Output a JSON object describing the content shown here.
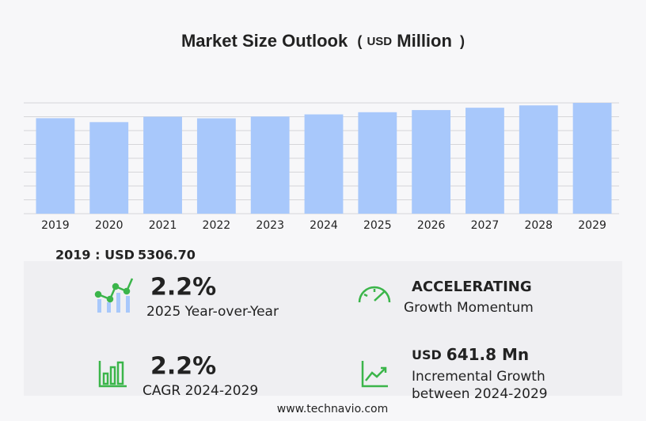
{
  "chart_data": {
    "type": "bar",
    "title": "Market Size Outlook",
    "title_unit": [
      "(",
      "USD",
      "Million",
      ")"
    ],
    "categories": [
      "2019",
      "2020",
      "2021",
      "2022",
      "2023",
      "2024",
      "2025",
      "2026",
      "2027",
      "2028",
      "2029"
    ],
    "values": [
      5306.7,
      5090,
      5390,
      5300,
      5400,
      5520,
      5640,
      5760,
      5890,
      6020,
      6160
    ],
    "color": "#a8c8fb",
    "ylim": [
      0,
      6160
    ],
    "yticks": [
      0,
      770,
      1540,
      2310,
      3080,
      3850,
      4620,
      5390,
      6160
    ],
    "grid": true
  },
  "highlight": {
    "label": "2019 : USD",
    "value": "5306.70"
  },
  "kpis": [
    {
      "value": "2.2%",
      "label": "2025 Year-over-Year"
    },
    {
      "value": "ACCELERATING",
      "label": "Growth Momentum"
    },
    {
      "value": "2.2%",
      "label": "CAGR 2024-2029"
    },
    {
      "value_unit": "USD",
      "value": "641.8 Mn",
      "label": "Incremental Growth",
      "label2": "between 2024-2029"
    }
  ],
  "footer": "www.technavio.com"
}
